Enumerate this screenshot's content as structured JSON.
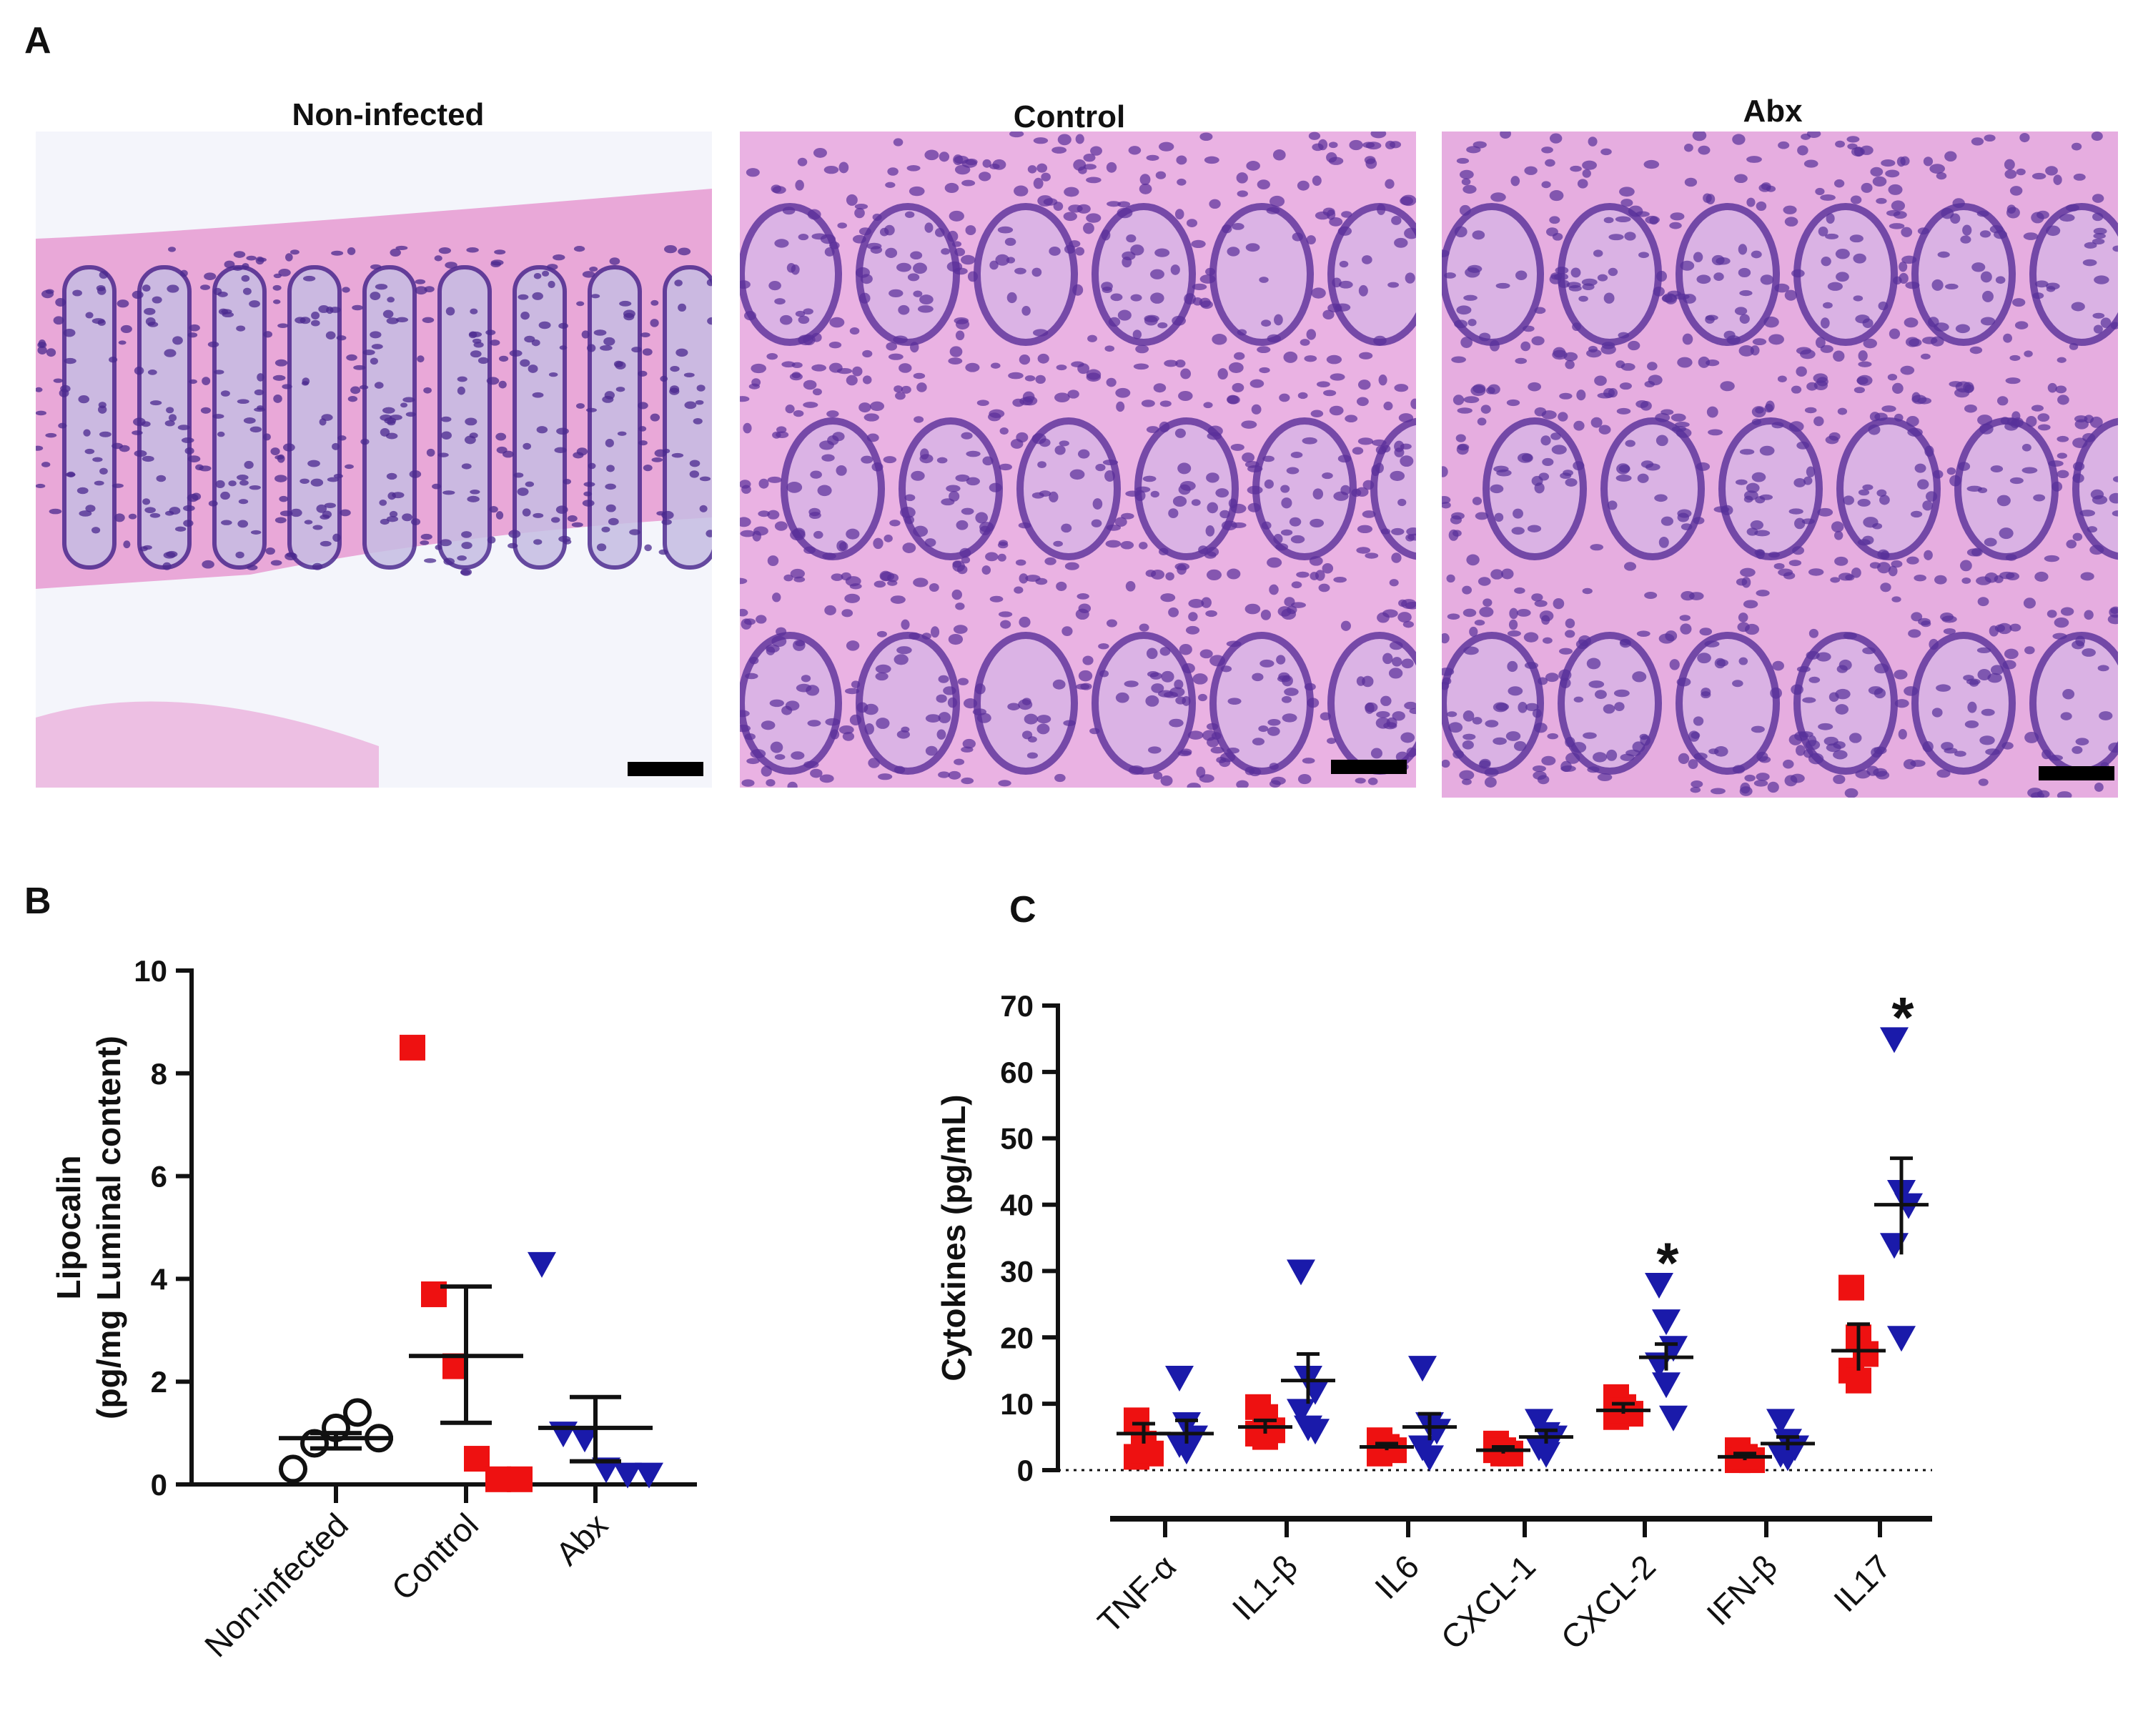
{
  "panel_a": {
    "letter": "A",
    "panels": [
      {
        "title": "Non-infected",
        "background": "#f4f5fb",
        "tissue": "#e9a8d8",
        "nucleus": "#4b2a8f"
      },
      {
        "title": "Control",
        "background": "#f0c4ea",
        "tissue": "#e5a4dc",
        "nucleus": "#5a2f9a"
      },
      {
        "title": "Abx",
        "background": "#eebde6",
        "tissue": "#e0a0da",
        "nucleus": "#57309a"
      }
    ]
  },
  "panel_b": {
    "letter": "B"
  },
  "panel_c": {
    "letter": "C"
  },
  "colors": {
    "control": "#ee1111",
    "abx": "#1a1aaa",
    "noninfected": "#111111"
  },
  "chart_data": [
    {
      "type": "scatter",
      "panel": "B",
      "categories": [
        "Non-infected",
        "Control",
        "Abx"
      ],
      "ylabel_lines": [
        "Lipocalin",
        "(pg/mg Luminal content)"
      ],
      "ylim": [
        0,
        10
      ],
      "yticks": [
        "0",
        "2",
        "4",
        "6",
        "8",
        "10"
      ],
      "groups": [
        {
          "marker": "circle-open",
          "points": [
            0.3,
            0.8,
            1.1,
            1.4,
            0.9
          ],
          "mean": 0.9,
          "sem": [
            0.7,
            1.0
          ]
        },
        {
          "marker": "square",
          "points": [
            8.5,
            3.7,
            2.3,
            0.5,
            0.1,
            0.1
          ],
          "mean": 2.5,
          "sem": [
            1.2,
            3.85
          ]
        },
        {
          "marker": "triangle-down",
          "points": [
            4.3,
            1.0,
            0.9,
            0.3,
            0.2,
            0.2
          ],
          "mean": 1.1,
          "sem": [
            0.45,
            1.7
          ]
        }
      ]
    },
    {
      "type": "scatter",
      "panel": "C",
      "categories": [
        "TNF-α",
        "IL1-β",
        "IL6",
        "CXCL-1",
        "CXCL-2",
        "IFN-β",
        "IL17"
      ],
      "ylabel": "Cytokines (pg/mL)",
      "ylim": [
        0,
        70
      ],
      "yticks": [
        "0",
        "10",
        "20",
        "30",
        "40",
        "50",
        "60",
        "70"
      ],
      "significance": [
        {
          "category": "CXCL-2",
          "label": "*",
          "y": 33
        },
        {
          "category": "IL17",
          "label": "*",
          "y": 70
        }
      ],
      "series": [
        {
          "group": "Control",
          "marker": "square",
          "values": [
            [
              7.5,
              4.0,
              2.5,
              2.0,
              3.0
            ],
            [
              9.5,
              8.0,
              6.0,
              5.5,
              5.0
            ],
            [
              4.5,
              3.5,
              3.0,
              2.5,
              3.5
            ],
            [
              4.0,
              3.0,
              2.5,
              3.0,
              2.5
            ],
            [
              11.0,
              9.5,
              8.5,
              8.0,
              9.0
            ],
            [
              3.0,
              2.0,
              1.5,
              1.5,
              2.0
            ],
            [
              27.5,
              20.0,
              17.5,
              15.0,
              13.5
            ]
          ],
          "mean": [
            5.5,
            6.5,
            3.5,
            3.0,
            9.0,
            2.0,
            18.0
          ],
          "sem": [
            [
              4.0,
              7.0
            ],
            [
              5.5,
              7.5
            ],
            [
              3.0,
              4.0
            ],
            [
              2.5,
              3.5
            ],
            [
              8.5,
              10.0
            ],
            [
              1.5,
              2.5
            ],
            [
              15.0,
              22.0
            ]
          ]
        },
        {
          "group": "Abx",
          "marker": "triangle-down",
          "values": [
            [
              14.0,
              7.0,
              5.0,
              4.0,
              3.0
            ],
            [
              30.0,
              14.0,
              12.0,
              9.0,
              6.5,
              6.0
            ],
            [
              15.5,
              7.0,
              6.0,
              3.5,
              2.0
            ],
            [
              7.5,
              5.5,
              5.0,
              3.5,
              2.5
            ],
            [
              28.0,
              22.5,
              18.5,
              16.0,
              13.0,
              8.0
            ],
            [
              7.5,
              4.5,
              3.5,
              2.5,
              2.0
            ],
            [
              65.0,
              42.0,
              40.0,
              34.0,
              20.0
            ]
          ],
          "mean": [
            5.5,
            13.5,
            6.5,
            5.0,
            17.0,
            4.0,
            40.0
          ],
          "sem": [
            [
              4.0,
              7.5
            ],
            [
              10.0,
              17.5
            ],
            [
              4.5,
              8.5
            ],
            [
              4.0,
              6.0
            ],
            [
              15.0,
              19.0
            ],
            [
              3.0,
              5.0
            ],
            [
              32.5,
              47.0
            ]
          ]
        }
      ]
    }
  ]
}
